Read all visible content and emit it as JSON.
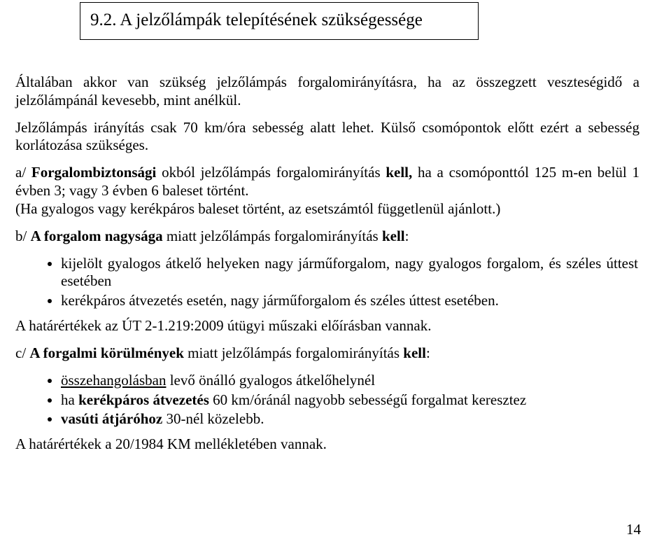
{
  "heading": "9.2. A jelzőlámpák telepítésének szükségessége",
  "para1": "Általában akkor van szükség jelzőlámpás forgalomirányításra, ha az összegzett veszteségidő a jelzőlámpánál kevesebb, mint anélkül.",
  "para2": "Jelzőlámpás irányítás csak 70 km/óra sebesség alatt lehet. Külső csomópontok előtt ezért a sebesség korlátozása szükséges.",
  "para3_part1": "a/ ",
  "para3_bold": "Forgalombiztonsági",
  "para3_part2": " okból jelzőlámpás forgalomirányítás ",
  "para3_bold2": "kell,",
  "para3_part3": " ha a csomóponttól 125 m-en belül 1 évben 3; vagy 3 évben 6 baleset történt.",
  "para3_line2": "(Ha gyalogos vagy kerékpáros baleset történt, az esetszámtól függetlenül ajánlott.)",
  "para4_part1": "b/ ",
  "para4_bold": "A forgalom nagysága",
  "para4_part2": " miatt jelzőlámpás forgalomirányítás ",
  "para4_bold2": "kell",
  "para4_part3": ":",
  "list1_item1": "kijelölt gyalogos átkelő helyeken nagy járműforgalom, nagy gyalogos forgalom, és széles úttest esetében",
  "list1_item2": "kerékpáros átvezetés esetén, nagy járműforgalom és széles úttest esetében.",
  "para5": "A határértékek az ÚT 2-1.219:2009 útügyi műszaki előírásban vannak.",
  "para6_part1": "c/ ",
  "para6_bold": "A forgalmi körülmények",
  "para6_part2": " miatt jelzőlámpás forgalomirányítás ",
  "para6_bold2": "kell",
  "para6_part3": ":",
  "list2_item1_u": "összehangolásban",
  "list2_item1_rest": " levő önálló gyalogos átkelőhelynél",
  "list2_item2_part1": "ha ",
  "list2_item2_bold": "kerékpáros átvezetés",
  "list2_item2_part2": " 60 km/óránál nagyobb sebességű forgalmat keresztez",
  "list2_item3_bold": "vasúti átjáróhoz",
  "list2_item3_rest": " 30-nél közelebb.",
  "para7": "A határértékek a 20/1984 KM mellékletében vannak.",
  "page_number": "14"
}
